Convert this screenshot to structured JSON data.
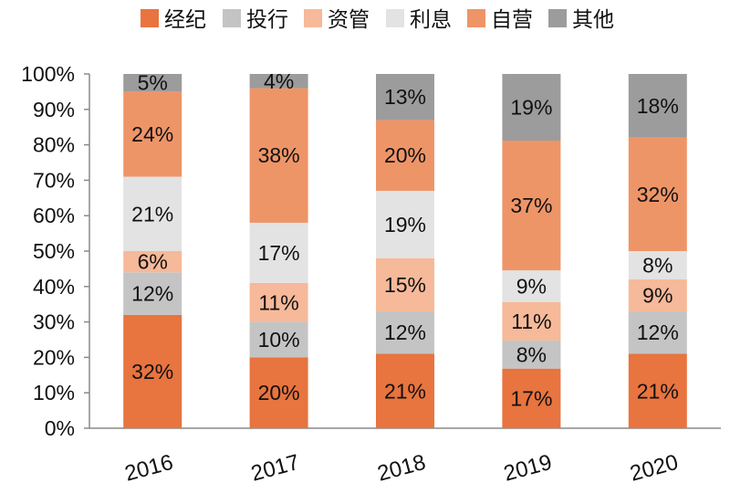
{
  "chart_data": {
    "type": "bar",
    "stacked": true,
    "categories": [
      "2016",
      "2017",
      "2018",
      "2019",
      "2020"
    ],
    "series": [
      {
        "name": "经纪",
        "color": "#E8743F",
        "values": [
          32,
          20,
          21,
          17,
          21
        ]
      },
      {
        "name": "投行",
        "color": "#C4C4C4",
        "values": [
          12,
          10,
          12,
          8,
          12
        ]
      },
      {
        "name": "资管",
        "color": "#F6B999",
        "values": [
          6,
          11,
          15,
          11,
          9
        ]
      },
      {
        "name": "利息",
        "color": "#E3E3E3",
        "values": [
          21,
          17,
          19,
          9,
          8
        ]
      },
      {
        "name": "自营",
        "color": "#EE9568",
        "values": [
          24,
          38,
          20,
          37,
          32
        ]
      },
      {
        "name": "其他",
        "color": "#9C9C9C",
        "values": [
          5,
          4,
          13,
          19,
          18
        ]
      }
    ],
    "value_labels": [
      [
        "32%",
        "20%",
        "21%",
        "17%",
        "21%"
      ],
      [
        "12%",
        "10%",
        "12%",
        "8%",
        "12%"
      ],
      [
        "6%",
        "11%",
        "15%",
        "11%",
        "9%"
      ],
      [
        "21%",
        "17%",
        "19%",
        "9%",
        "8%"
      ],
      [
        "24%",
        "38%",
        "20%",
        "37%",
        "32%"
      ],
      [
        "5%",
        "4%",
        "13%",
        "19%",
        "18%"
      ]
    ],
    "y_ticks": [
      "0%",
      "10%",
      "20%",
      "30%",
      "40%",
      "50%",
      "60%",
      "70%",
      "80%",
      "90%",
      "100%"
    ],
    "ylim": [
      0,
      100
    ],
    "legend_position": "top",
    "grid": false
  }
}
